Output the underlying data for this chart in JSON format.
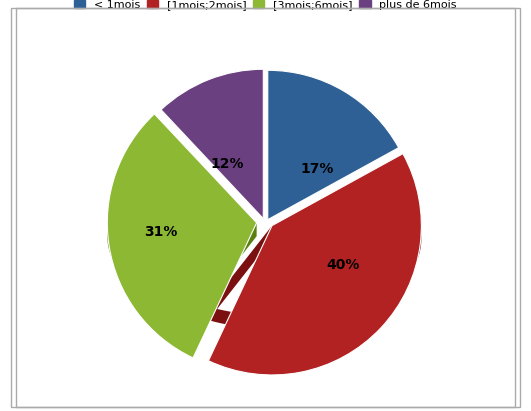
{
  "labels": [
    "< 1mois",
    "[1mois;2mois]",
    "[3mois;6mois]",
    "plus de 6mois"
  ],
  "values": [
    17,
    40,
    31,
    12
  ],
  "colors": [
    "#2E6096",
    "#B22222",
    "#8DB833",
    "#6A4080"
  ],
  "dark_colors": [
    "#1A3A5C",
    "#7A1010",
    "#5A8010",
    "#3A2050"
  ],
  "explode": [
    0.03,
    0.06,
    0.06,
    0.04
  ],
  "background_color": "#FFFFFF",
  "figsize": [
    5.31,
    4.11
  ],
  "dpi": 100,
  "startangle": 90,
  "depth": 0.12,
  "yscale": 0.55
}
